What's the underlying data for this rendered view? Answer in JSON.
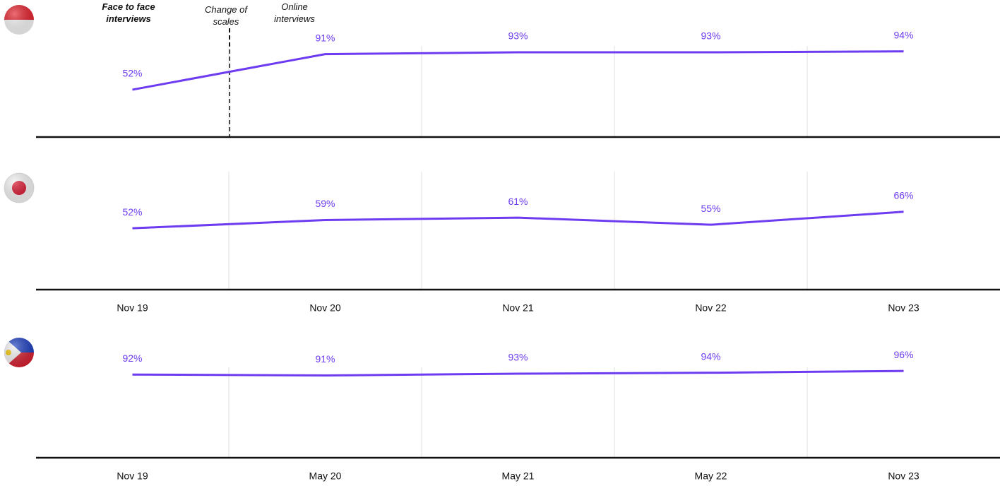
{
  "chart_data": [
    {
      "type": "line",
      "categories": [
        null,
        null,
        null,
        null,
        null
      ],
      "series": [
        {
          "color": "#6d3cf0",
          "values": [
            52,
            91,
            93,
            93,
            94
          ],
          "value_labels": [
            "52%",
            "91%",
            "93%",
            "93%",
            "94%"
          ]
        }
      ],
      "ylim": [
        0,
        100
      ],
      "grid": true,
      "annotations": [
        "Face to face interviews",
        "Change of scales",
        "Online interviews"
      ]
    },
    {
      "type": "line",
      "categories": [
        "Nov 19",
        "Nov 20",
        "Nov 21",
        "Nov 22",
        "Nov 23"
      ],
      "series": [
        {
          "color": "#6d3cf0",
          "values": [
            52,
            59,
            61,
            55,
            66
          ],
          "value_labels": [
            "52%",
            "59%",
            "61%",
            "55%",
            "66%"
          ]
        }
      ],
      "ylim": [
        0,
        100
      ],
      "grid": true
    },
    {
      "type": "line",
      "categories": [
        "Nov 19",
        "May 20",
        "May 21",
        "May 22",
        "Nov 23"
      ],
      "series": [
        {
          "color": "#6d3cf0",
          "values": [
            92,
            91,
            93,
            94,
            96
          ],
          "value_labels": [
            "92%",
            "91%",
            "93%",
            "94%",
            "96%"
          ]
        }
      ],
      "ylim": [
        0,
        100
      ],
      "grid": true
    }
  ]
}
